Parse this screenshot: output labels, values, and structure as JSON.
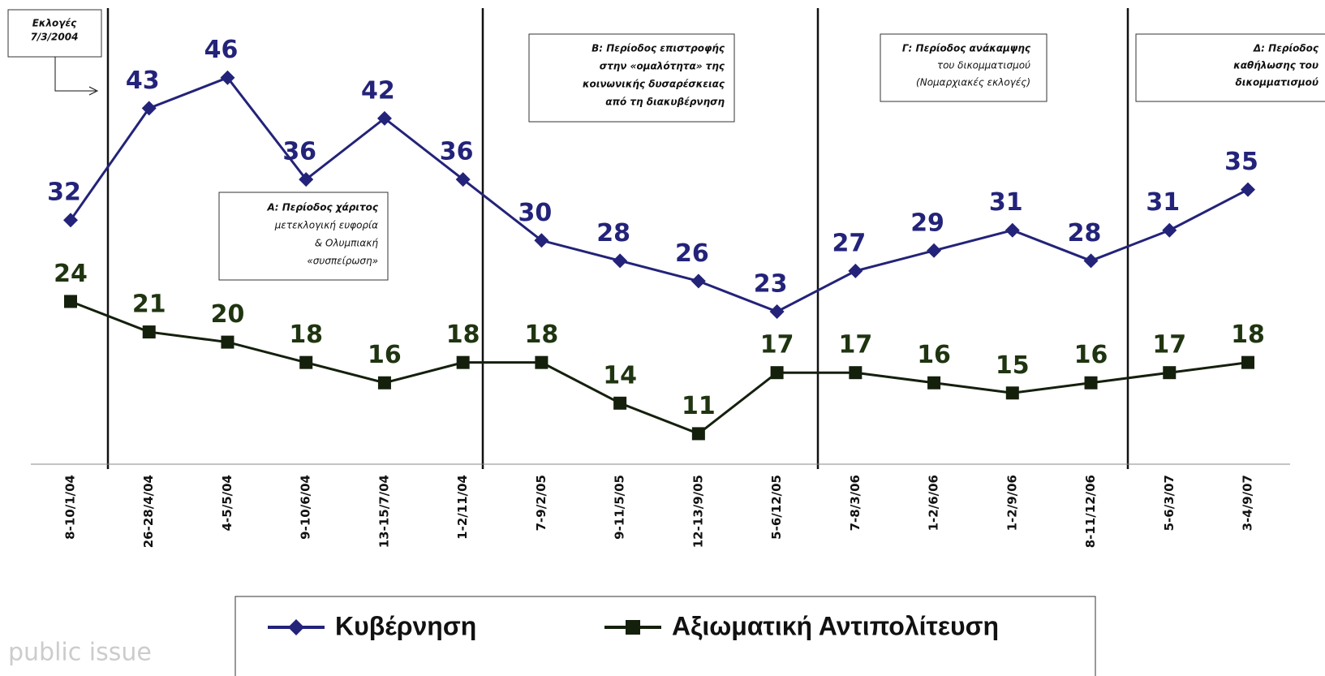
{
  "chart_data": {
    "type": "line",
    "categories": [
      "8-10/1/04",
      "26-28/4/04",
      "4-5/5/04",
      "9-10/6/04",
      "13-15/7/04",
      "1-2/11/04",
      "7-9/2/05",
      "9-11/5/05",
      "12-13/9/05",
      "5-6/12/05",
      "7-8/3/06",
      "1-2/6/06",
      "1-2/9/06",
      "8-11/12/06",
      "5-6/3/07",
      "3-4/9/07"
    ],
    "series": [
      {
        "name": "Κυβέρνηση",
        "color": "#23237a",
        "marker": "diamond",
        "values": [
          32,
          43,
          46,
          36,
          42,
          36,
          30,
          28,
          26,
          23,
          27,
          29,
          31,
          28,
          31,
          35
        ]
      },
      {
        "name": "Αξιωματική Αντιπολίτευση",
        "color": "#14200c",
        "marker": "square",
        "values": [
          24,
          21,
          20,
          18,
          16,
          18,
          18,
          14,
          11,
          17,
          17,
          16,
          15,
          16,
          17,
          18
        ]
      }
    ],
    "ylim": [
      8,
      53
    ],
    "legend": "bottom",
    "annotations": [
      {
        "lines": [
          "Εκλογές",
          "7/3/2004"
        ]
      },
      {
        "lines": [
          "Α: Περίοδος χάριτος",
          "μετεκλογική ευφορία",
          "& Ολυμπιακή",
          "«συσπείρωση»"
        ]
      },
      {
        "lines": [
          "Β: Περίοδος επιστροφής",
          "στην «ομαλότητα» της",
          "κοινωνικής δυσαρέσκειας",
          "από τη διακυβέρνηση"
        ]
      },
      {
        "lines": [
          "Γ: Περίοδος ανάκαμψης",
          "του δικομματισμού",
          "(Νομαρχιακές εκλογές)"
        ]
      },
      {
        "lines": [
          "Δ: Περίοδος",
          "καθήλωσης του",
          "δικομματισμού"
        ]
      }
    ],
    "watermark": "public issue"
  }
}
